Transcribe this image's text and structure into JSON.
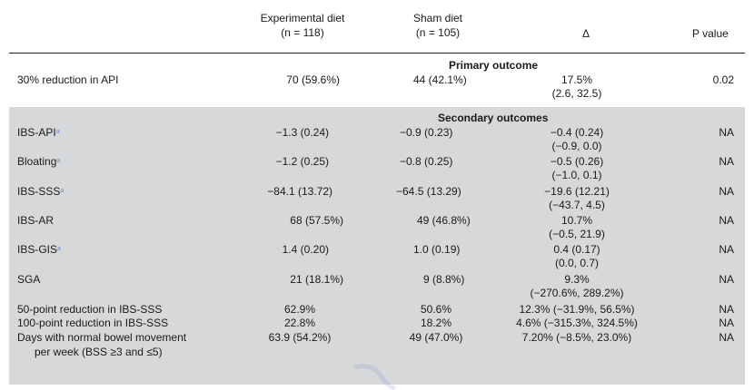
{
  "header": {
    "col1_line1": "Experimental diet",
    "col1_line2": "(n = 118)",
    "col2_line1": "Sham diet",
    "col2_line2": "(n = 105)",
    "col3": "Δ",
    "col4": "P value"
  },
  "primary": {
    "section_title": "Primary outcome",
    "row": {
      "label": "30% reduction in API",
      "exp": "70 (59.6%)",
      "sham": "44 (42.1%)",
      "delta_line1": "17.5%",
      "delta_line2": "(2.6, 32.5)",
      "p": "0.02"
    }
  },
  "secondary": {
    "section_title": "Secondary outcomes",
    "rows": [
      {
        "label": "IBS-API",
        "sup": "a",
        "exp": "−1.3 (0.24)",
        "sham": "−0.9 (0.23)",
        "delta_line1": "−0.4 (0.24)",
        "delta_line2": "(−0.9, 0.0)",
        "p": "NA"
      },
      {
        "label": "Bloating",
        "sup": "a",
        "exp": "−1.2 (0.25)",
        "sham": "−0.8 (0.25)",
        "delta_line1": "−0.5 (0.26)",
        "delta_line2": "(−1.0, 0.1)",
        "p": "NA"
      },
      {
        "label": "IBS-SSS",
        "sup": "a",
        "exp": "−84.1 (13.72)",
        "sham": "−64.5 (13.29)",
        "delta_line1": "−19.6 (12.21)",
        "delta_line2": "(−43.7, 4.5)",
        "p": "NA"
      },
      {
        "label": "IBS-AR",
        "sup": "",
        "exp": "68 (57.5%)",
        "sham": "49 (46.8%)",
        "delta_line1": "10.7%",
        "delta_line2": "(−0.5, 21.9)",
        "p": "NA"
      },
      {
        "label": "IBS-GIS",
        "sup": "a",
        "exp": "1.4 (0.20)",
        "sham": "1.0 (0.19)",
        "delta_line1": "0.4 (0.17)",
        "delta_line2": "(0.0, 0.7)",
        "p": "NA"
      },
      {
        "label": "SGA",
        "sup": "",
        "exp": "21 (18.1%)",
        "sham": "9 (8.8%)",
        "delta_line1": "9.3%",
        "delta_line2": "(−270.6%, 289.2%)",
        "p": "NA"
      },
      {
        "label": "50-point reduction in IBS-SSS",
        "sup": "",
        "exp": "62.9%",
        "sham": "50.6%",
        "delta_line1": "12.3% (−31.9%, 56.5%)",
        "delta_line2": "",
        "p": "NA"
      },
      {
        "label": "100-point reduction in IBS-SSS",
        "sup": "",
        "exp": "22.8%",
        "sham": "18.2%",
        "delta_line1": "4.6% (−315.3%, 324.5%)",
        "delta_line2": "",
        "p": "NA"
      },
      {
        "label": "Days with normal bowel movement",
        "label_line2": "per week (BSS ≥3 and ≤5)",
        "sup": "",
        "exp": "63.9 (54.2%)",
        "sham": "49 (47.0%)",
        "delta_line1": "7.20% (−8.5%, 23.0%)",
        "delta_line2": "",
        "p": "NA"
      }
    ]
  }
}
